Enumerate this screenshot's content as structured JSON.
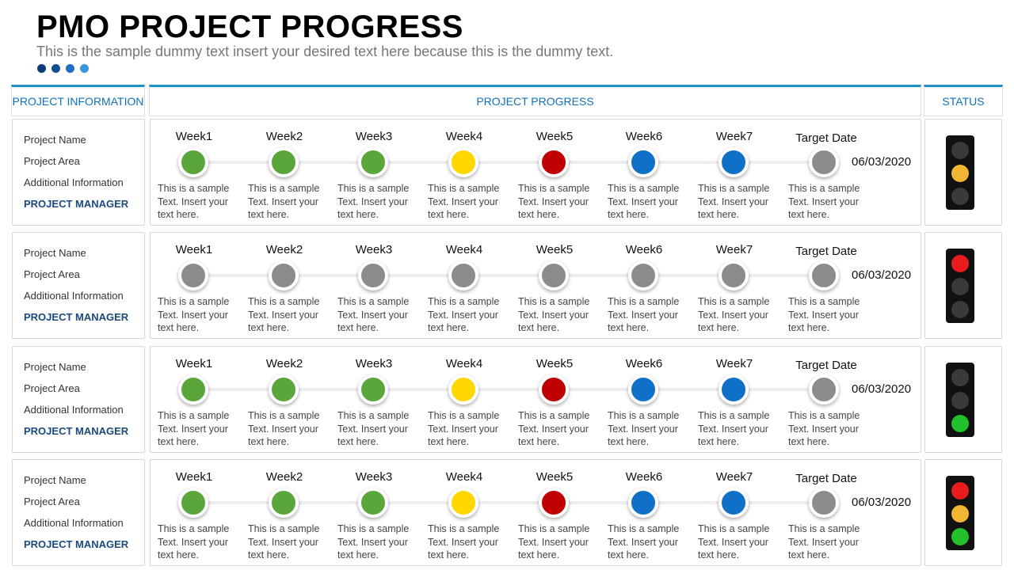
{
  "header": {
    "title": "PMO PROJECT PROGRESS",
    "subtitle": "This is the sample dummy text insert your desired text here because this is the dummy text."
  },
  "columns": [
    "PROJECT INFORMATION",
    "PROJECT PROGRESS",
    "STATUS"
  ],
  "projects": [
    {
      "info": [
        "Project Name",
        "Project Area",
        "Additional Information",
        "PROJECT MANAGER"
      ],
      "milestones": [
        {
          "label": "Week1",
          "color": "#5aa63a",
          "text": [
            "This is a sample",
            "Text. Insert your",
            "text here."
          ]
        },
        {
          "label": "Week2",
          "color": "#5aa63a",
          "text": [
            "This is a sample",
            "Text. Insert your",
            "text here."
          ]
        },
        {
          "label": "Week3",
          "color": "#5aa63a",
          "text": [
            "This is a sample",
            "Text. Insert your",
            "text here."
          ]
        },
        {
          "label": "Week4",
          "color": "#ffd700",
          "text": [
            "This is a sample",
            "Text. Insert your",
            "text here."
          ]
        },
        {
          "label": "Week5",
          "color": "#c00000",
          "text": [
            "This is a sample",
            "Text. Insert your",
            "text here."
          ]
        },
        {
          "label": "Week6",
          "color": "#1070c8",
          "text": [
            "This is a sample",
            "Text. Insert your",
            "text here."
          ]
        },
        {
          "label": "Week7",
          "color": "#1070c8",
          "text": [
            "This is a sample",
            "Text. Insert your",
            "text here."
          ]
        }
      ],
      "target": {
        "label": "Target Date",
        "date": "06/03/2020",
        "color": "#8c8c8c",
        "text": [
          "This is a sample",
          "Text. Insert your",
          "text here."
        ]
      },
      "light": [
        "#3a3a3a",
        "#f2b632",
        "#3a3a3a"
      ]
    },
    {
      "info": [
        "Project Name",
        "Project Area",
        "Additional Information",
        "PROJECT MANAGER"
      ],
      "milestones": [
        {
          "label": "Week1",
          "color": "#8c8c8c",
          "text": [
            "This is a sample",
            "Text. Insert your",
            "text here."
          ]
        },
        {
          "label": "Week2",
          "color": "#8c8c8c",
          "text": [
            "This is a sample",
            "Text. Insert your",
            "text here."
          ]
        },
        {
          "label": "Week3",
          "color": "#8c8c8c",
          "text": [
            "This is a sample",
            "Text. Insert your",
            "text here."
          ]
        },
        {
          "label": "Week4",
          "color": "#8c8c8c",
          "text": [
            "This is a sample",
            "Text. Insert your",
            "text here."
          ]
        },
        {
          "label": "Week5",
          "color": "#8c8c8c",
          "text": [
            "This is a sample",
            "Text. Insert your",
            "text here."
          ]
        },
        {
          "label": "Week6",
          "color": "#8c8c8c",
          "text": [
            "This is a sample",
            "Text. Insert your",
            "text here."
          ]
        },
        {
          "label": "Week7",
          "color": "#8c8c8c",
          "text": [
            "This is a sample",
            "Text. Insert your",
            "text here."
          ]
        }
      ],
      "target": {
        "label": "Target Date",
        "date": "06/03/2020",
        "color": "#8c8c8c",
        "text": [
          "This is a sample",
          "Text. Insert your",
          "text here."
        ]
      },
      "light": [
        "#e81c1c",
        "#3a3a3a",
        "#3a3a3a"
      ]
    },
    {
      "info": [
        "Project Name",
        "Project Area",
        "Additional Information",
        "PROJECT MANAGER"
      ],
      "milestones": [
        {
          "label": "Week1",
          "color": "#5aa63a",
          "text": [
            "This is a sample",
            "Text. Insert your",
            "text here."
          ]
        },
        {
          "label": "Week2",
          "color": "#5aa63a",
          "text": [
            "This is a sample",
            "Text. Insert your",
            "text here."
          ]
        },
        {
          "label": "Week3",
          "color": "#5aa63a",
          "text": [
            "This is a sample",
            "Text. Insert your",
            "text here."
          ]
        },
        {
          "label": "Week4",
          "color": "#ffd700",
          "text": [
            "This is a sample",
            "Text. Insert your",
            "text here."
          ]
        },
        {
          "label": "Week5",
          "color": "#c00000",
          "text": [
            "This is a sample",
            "Text. Insert your",
            "text here."
          ]
        },
        {
          "label": "Week6",
          "color": "#1070c8",
          "text": [
            "This is a sample",
            "Text. Insert your",
            "text here."
          ]
        },
        {
          "label": "Week7",
          "color": "#1070c8",
          "text": [
            "This is a sample",
            "Text. Insert your",
            "text here."
          ]
        }
      ],
      "target": {
        "label": "Target Date",
        "date": "06/03/2020",
        "color": "#8c8c8c",
        "text": [
          "This is a sample",
          "Text. Insert your",
          "text here."
        ]
      },
      "light": [
        "#3a3a3a",
        "#3a3a3a",
        "#22c02a"
      ]
    },
    {
      "info": [
        "Project Name",
        "Project Area",
        "Additional Information",
        "PROJECT MANAGER"
      ],
      "milestones": [
        {
          "label": "Week1",
          "color": "#5aa63a",
          "text": [
            "This is a sample",
            "Text. Insert your",
            "text here."
          ]
        },
        {
          "label": "Week2",
          "color": "#5aa63a",
          "text": [
            "This is a sample",
            "Text. Insert your",
            "text here."
          ]
        },
        {
          "label": "Week3",
          "color": "#5aa63a",
          "text": [
            "This is a sample",
            "Text. Insert your",
            "text here."
          ]
        },
        {
          "label": "Week4",
          "color": "#ffd700",
          "text": [
            "This is a sample",
            "Text. Insert your",
            "text here."
          ]
        },
        {
          "label": "Week5",
          "color": "#c00000",
          "text": [
            "This is a sample",
            "Text. Insert your",
            "text here."
          ]
        },
        {
          "label": "Week6",
          "color": "#1070c8",
          "text": [
            "This is a sample",
            "Text. Insert your",
            "text here."
          ]
        },
        {
          "label": "Week7",
          "color": "#1070c8",
          "text": [
            "This is a sample",
            "Text. Insert your",
            "text here."
          ]
        }
      ],
      "target": {
        "label": "Target Date",
        "date": "06/03/2020",
        "color": "#8c8c8c",
        "text": [
          "This is a sample",
          "Text. Insert your",
          "text here."
        ]
      },
      "light": [
        "#e81c1c",
        "#f2b632",
        "#22c02a"
      ]
    }
  ]
}
